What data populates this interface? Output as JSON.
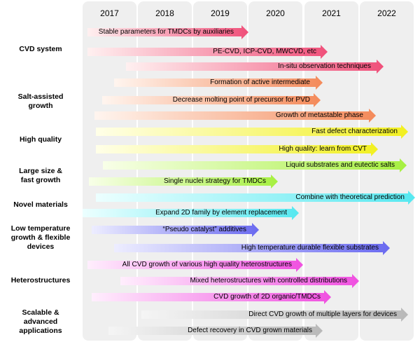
{
  "years": [
    "2017",
    "2018",
    "2019",
    "2020",
    "2021",
    "2022"
  ],
  "categories": [
    {
      "name": "cvd",
      "label": [
        "CVD system"
      ]
    },
    {
      "name": "salt",
      "label": [
        "Salt-assisted",
        "growth"
      ]
    },
    {
      "name": "quality",
      "label": [
        "High quality"
      ]
    },
    {
      "name": "large",
      "label": [
        "Large size &",
        "fast growth"
      ]
    },
    {
      "name": "novel",
      "label": [
        "Novel materials"
      ]
    },
    {
      "name": "lowtemp",
      "label": [
        "Low temperature",
        "growth & flexible",
        "devices"
      ]
    },
    {
      "name": "hetero",
      "label": [
        "Heterostructures"
      ]
    },
    {
      "name": "scalable",
      "label": [
        "Scalable &",
        "advanced",
        "applications"
      ]
    }
  ],
  "arrows": [
    {
      "text": "Stable parameters for TMDCs by auxiliaries",
      "color_start": "#fff0f0",
      "color_end": "#f0507a"
    },
    {
      "text": "PE-CVD, ICP-CVD, MWCVD, etc",
      "color_start": "#fff0f0",
      "color_end": "#f0507a"
    },
    {
      "text": "In-situ observation techniques",
      "color_start": "#fff0f0",
      "color_end": "#f0507a"
    },
    {
      "text": "Formation of active intermediate",
      "color_start": "#fff5ef",
      "color_end": "#f48a5a"
    },
    {
      "text": "Decrease molting point of precursor for PVD",
      "color_start": "#fff5ef",
      "color_end": "#f48a5a"
    },
    {
      "text": "Growth of metastable phase",
      "color_start": "#fff5ef",
      "color_end": "#f48a5a"
    },
    {
      "text": "Fast defect characterization",
      "color_start": "#ffffe8",
      "color_end": "#f2f020"
    },
    {
      "text": "High quality: learn from CVT",
      "color_start": "#ffffe8",
      "color_end": "#f2f020"
    },
    {
      "text": "Liquid substrates and eutectic salts",
      "color_start": "#f8ffe8",
      "color_end": "#a6f040"
    },
    {
      "text": "Single nuclei strategy for TMDCs",
      "color_start": "#f8ffe8",
      "color_end": "#a6f040"
    },
    {
      "text": "Combine with theoretical prediction",
      "color_start": "#ecffff",
      "color_end": "#56e8f0"
    },
    {
      "text": "Expand 2D family by element replacement",
      "color_start": "#ecffff",
      "color_end": "#56e8f0"
    },
    {
      "text": "“Pseudo catalyst” additives",
      "color_start": "#ededff",
      "color_end": "#6a6af0"
    },
    {
      "text": "High temperature durable flexible substrates",
      "color_start": "#ededff",
      "color_end": "#6a6af0"
    },
    {
      "text": "All CVD growth of various high quality heterostructures",
      "color_start": "#ffeefd",
      "color_end": "#f050e0"
    },
    {
      "text": "Mixed heterostructures with controlled distributions",
      "color_start": "#ffeefd",
      "color_end": "#f050e0"
    },
    {
      "text": "CVD growth of 2D organic/TMDCs",
      "color_start": "#ffeefd",
      "color_end": "#f050e0"
    },
    {
      "text": "Direct CVD growth of multiple layers for devices",
      "color_start": "#f5f5f5",
      "color_end": "#b8b8b8"
    },
    {
      "text": "Defect recovery in CVD grown materials",
      "color_start": "#f5f5f5",
      "color_end": "#b8b8b8"
    }
  ]
}
